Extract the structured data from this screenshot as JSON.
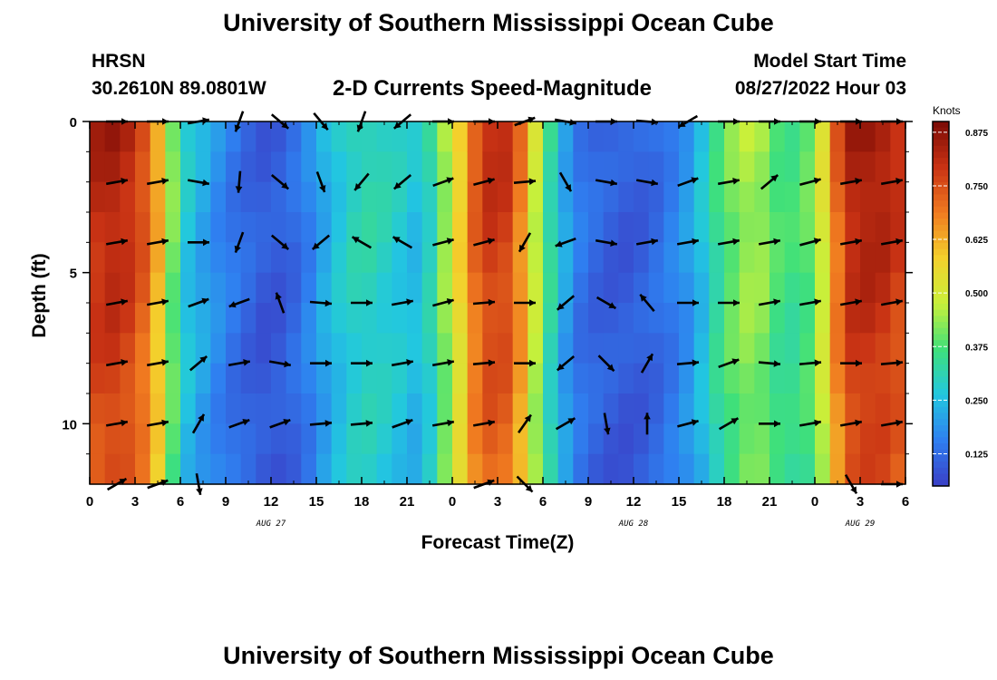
{
  "header": {
    "title": "University of Southern Mississippi Ocean Cube",
    "station": "HRSN",
    "coords": "30.2610N  89.0801W",
    "subtitle": "2-D Currents Speed-Magnitude",
    "model_label": "Model Start Time",
    "model_value": "08/27/2022 Hour 03",
    "footer_title": "University of Southern Mississippi Ocean Cube"
  },
  "chart_data": {
    "type": "heatmap",
    "xlabel": "Forecast Time(Z)",
    "ylabel": "Depth (ft)",
    "x_tick_labels": [
      "0",
      "3",
      "6",
      "9",
      "12",
      "15",
      "18",
      "21",
      "0",
      "3",
      "6",
      "9",
      "12",
      "15",
      "18",
      "21",
      "0",
      "3",
      "6"
    ],
    "x_range_hours": [
      0,
      54
    ],
    "date_labels": [
      {
        "text": "AUG 27",
        "hour": 12
      },
      {
        "text": "AUG 28",
        "hour": 36
      },
      {
        "text": "AUG 29",
        "hour": 51
      }
    ],
    "y_ticks": [
      0,
      5,
      10
    ],
    "ylim": [
      0,
      12
    ],
    "y_inverted": true,
    "colorbar": {
      "units": "Knots",
      "ticks": [
        "0.875",
        "0.750",
        "0.625",
        "0.500",
        "0.375",
        "0.250",
        "0.125"
      ],
      "tick_values": [
        0.875,
        0.75,
        0.625,
        0.5,
        0.375,
        0.25,
        0.125
      ],
      "range": [
        0.05,
        0.9
      ],
      "colors": [
        "#3a3fc6",
        "#2f7ff0",
        "#22c7e0",
        "#3fe07a",
        "#c8f03a",
        "#f4d02c",
        "#f07a20",
        "#c83214",
        "#7a0a05"
      ]
    },
    "hour_profile": [
      {
        "h": 0,
        "v": 0.83
      },
      {
        "h": 2,
        "v": 0.86
      },
      {
        "h": 4,
        "v": 0.74
      },
      {
        "h": 5,
        "v": 0.55
      },
      {
        "h": 6,
        "v": 0.3
      },
      {
        "h": 8,
        "v": 0.2
      },
      {
        "h": 10,
        "v": 0.13
      },
      {
        "h": 12,
        "v": 0.09
      },
      {
        "h": 14,
        "v": 0.14
      },
      {
        "h": 16,
        "v": 0.26
      },
      {
        "h": 18,
        "v": 0.33
      },
      {
        "h": 20,
        "v": 0.3
      },
      {
        "h": 22,
        "v": 0.25
      },
      {
        "h": 24,
        "v": 0.52
      },
      {
        "h": 26,
        "v": 0.82
      },
      {
        "h": 28,
        "v": 0.8
      },
      {
        "h": 30,
        "v": 0.4
      },
      {
        "h": 32,
        "v": 0.16
      },
      {
        "h": 34,
        "v": 0.11
      },
      {
        "h": 36,
        "v": 0.1
      },
      {
        "h": 38,
        "v": 0.14
      },
      {
        "h": 40,
        "v": 0.22
      },
      {
        "h": 42,
        "v": 0.4
      },
      {
        "h": 44,
        "v": 0.48
      },
      {
        "h": 46,
        "v": 0.36
      },
      {
        "h": 48,
        "v": 0.42
      },
      {
        "h": 50,
        "v": 0.84
      },
      {
        "h": 52,
        "v": 0.87
      },
      {
        "h": 54,
        "v": 0.8
      }
    ],
    "arrow_depths_ft": [
      0,
      2,
      4,
      6,
      8,
      10,
      12
    ],
    "arrow_hours": [
      1.8,
      4.5,
      7.2,
      9.9,
      12.6,
      15.3,
      18,
      20.7,
      23.4,
      26.1,
      28.8,
      31.5,
      34.2,
      36.9,
      39.6,
      42.3,
      45,
      47.7,
      50.4,
      53.1
    ],
    "arrow_angles_deg": [
      [
        0,
        0,
        350,
        110,
        40,
        50,
        110,
        140,
        0,
        0,
        340,
        10,
        0,
        5,
        150,
        0,
        0,
        0,
        0,
        0
      ],
      [
        -10,
        -10,
        10,
        95,
        40,
        70,
        130,
        140,
        -20,
        -15,
        -5,
        60,
        10,
        10,
        -20,
        -10,
        -40,
        -15,
        -10,
        -10
      ],
      [
        -10,
        -10,
        0,
        110,
        40,
        140,
        -150,
        -150,
        -15,
        -15,
        120,
        160,
        10,
        -10,
        -10,
        -10,
        -10,
        -15,
        -10,
        -10
      ],
      [
        -10,
        -10,
        -20,
        160,
        -110,
        5,
        0,
        -10,
        -15,
        -5,
        0,
        140,
        30,
        -130,
        0,
        0,
        -10,
        -10,
        -10,
        -10
      ],
      [
        -10,
        -10,
        -40,
        -10,
        10,
        0,
        0,
        -10,
        -10,
        -5,
        0,
        140,
        45,
        -60,
        -5,
        -20,
        5,
        -5,
        0,
        -5
      ],
      [
        -10,
        -10,
        -60,
        -20,
        -20,
        -5,
        -5,
        -20,
        -10,
        -10,
        -55,
        -30,
        80,
        -90,
        -15,
        -30,
        0,
        -10,
        -10,
        -10
      ],
      [
        -30,
        -20,
        80,
        0,
        0,
        0,
        0,
        0,
        -10,
        -20,
        45,
        0,
        0,
        0,
        0,
        0,
        0,
        -20,
        60,
        0
      ]
    ],
    "arrow_scale": 1,
    "hidden_arrow_rows": [
      6
    ],
    "visible_arrows_row_12": [
      0,
      1,
      2,
      9,
      10,
      18,
      19
    ]
  },
  "plot": {
    "border_color": "#000000"
  }
}
